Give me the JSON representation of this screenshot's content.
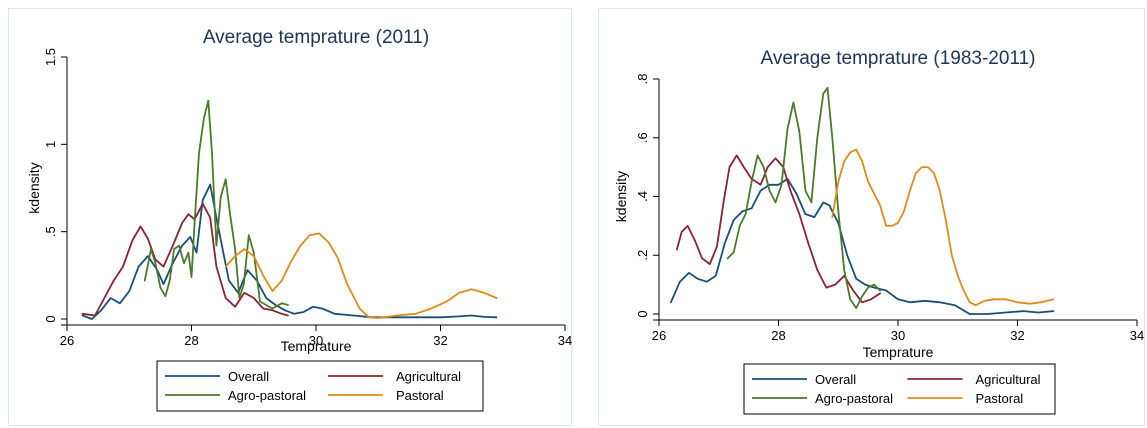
{
  "chart_data": [
    {
      "type": "line",
      "title": "Average temprature (2011)",
      "xlabel": "Temprature",
      "ylabel": "kdensity",
      "xlim": [
        26,
        34
      ],
      "ylim": [
        0,
        1.5
      ],
      "x_ticks": [
        26,
        28,
        30,
        32,
        34
      ],
      "x_tick_labels": [
        "26",
        "28",
        "30",
        "32",
        "34"
      ],
      "y_ticks": [
        0,
        0.5,
        1,
        1.5
      ],
      "y_tick_labels": [
        "0",
        ".5",
        "1",
        "1.5"
      ],
      "grid": false,
      "legend_position": "bottom",
      "series": [
        {
          "name": "Overall",
          "color": "#1a4e7a",
          "points": [
            [
              26.25,
              0.02
            ],
            [
              26.4,
              0.0
            ],
            [
              26.55,
              0.05
            ],
            [
              26.7,
              0.12
            ],
            [
              26.85,
              0.09
            ],
            [
              27.0,
              0.16
            ],
            [
              27.15,
              0.3
            ],
            [
              27.3,
              0.36
            ],
            [
              27.45,
              0.28
            ],
            [
              27.55,
              0.2
            ],
            [
              27.7,
              0.32
            ],
            [
              27.85,
              0.42
            ],
            [
              27.98,
              0.47
            ],
            [
              28.08,
              0.38
            ],
            [
              28.18,
              0.68
            ],
            [
              28.3,
              0.77
            ],
            [
              28.4,
              0.58
            ],
            [
              28.5,
              0.4
            ],
            [
              28.6,
              0.22
            ],
            [
              28.75,
              0.15
            ],
            [
              28.9,
              0.28
            ],
            [
              29.05,
              0.22
            ],
            [
              29.2,
              0.12
            ],
            [
              29.35,
              0.08
            ],
            [
              29.5,
              0.05
            ],
            [
              29.65,
              0.03
            ],
            [
              29.8,
              0.04
            ],
            [
              29.95,
              0.07
            ],
            [
              30.1,
              0.06
            ],
            [
              30.3,
              0.03
            ],
            [
              30.6,
              0.02
            ],
            [
              30.9,
              0.01
            ],
            [
              31.3,
              0.01
            ],
            [
              31.7,
              0.01
            ],
            [
              32.0,
              0.01
            ],
            [
              32.3,
              0.015
            ],
            [
              32.5,
              0.02
            ],
            [
              32.7,
              0.012
            ],
            [
              32.9,
              0.01
            ]
          ]
        },
        {
          "name": "Agricultural",
          "color": "#8b2233",
          "points": [
            [
              26.25,
              0.03
            ],
            [
              26.45,
              0.02
            ],
            [
              26.6,
              0.12
            ],
            [
              26.75,
              0.22
            ],
            [
              26.9,
              0.3
            ],
            [
              27.05,
              0.45
            ],
            [
              27.18,
              0.53
            ],
            [
              27.3,
              0.46
            ],
            [
              27.42,
              0.34
            ],
            [
              27.55,
              0.3
            ],
            [
              27.7,
              0.42
            ],
            [
              27.85,
              0.55
            ],
            [
              27.95,
              0.6
            ],
            [
              28.05,
              0.57
            ],
            [
              28.18,
              0.66
            ],
            [
              28.3,
              0.58
            ],
            [
              28.4,
              0.3
            ],
            [
              28.55,
              0.12
            ],
            [
              28.7,
              0.07
            ],
            [
              28.85,
              0.15
            ],
            [
              29.0,
              0.12
            ],
            [
              29.15,
              0.06
            ],
            [
              29.3,
              0.05
            ],
            [
              29.45,
              0.03
            ],
            [
              29.55,
              0.02
            ]
          ]
        },
        {
          "name": "Agro-pastoral",
          "color": "#4b7a2b",
          "points": [
            [
              27.25,
              0.22
            ],
            [
              27.35,
              0.4
            ],
            [
              27.42,
              0.32
            ],
            [
              27.5,
              0.18
            ],
            [
              27.58,
              0.13
            ],
            [
              27.65,
              0.22
            ],
            [
              27.72,
              0.4
            ],
            [
              27.8,
              0.42
            ],
            [
              27.88,
              0.32
            ],
            [
              27.95,
              0.38
            ],
            [
              28.0,
              0.24
            ],
            [
              28.05,
              0.55
            ],
            [
              28.12,
              0.95
            ],
            [
              28.2,
              1.15
            ],
            [
              28.27,
              1.25
            ],
            [
              28.33,
              0.95
            ],
            [
              28.4,
              0.42
            ],
            [
              28.47,
              0.7
            ],
            [
              28.55,
              0.8
            ],
            [
              28.62,
              0.6
            ],
            [
              28.7,
              0.4
            ],
            [
              28.77,
              0.12
            ],
            [
              28.84,
              0.2
            ],
            [
              28.92,
              0.48
            ],
            [
              29.0,
              0.38
            ],
            [
              29.1,
              0.1
            ],
            [
              29.2,
              0.08
            ],
            [
              29.3,
              0.06
            ],
            [
              29.45,
              0.09
            ],
            [
              29.55,
              0.08
            ]
          ]
        },
        {
          "name": "Pastoral",
          "color": "#e08a1a",
          "points": [
            [
              28.55,
              0.3
            ],
            [
              28.7,
              0.36
            ],
            [
              28.85,
              0.4
            ],
            [
              29.0,
              0.36
            ],
            [
              29.15,
              0.25
            ],
            [
              29.3,
              0.16
            ],
            [
              29.45,
              0.22
            ],
            [
              29.6,
              0.33
            ],
            [
              29.75,
              0.42
            ],
            [
              29.9,
              0.48
            ],
            [
              30.05,
              0.49
            ],
            [
              30.2,
              0.44
            ],
            [
              30.35,
              0.35
            ],
            [
              30.5,
              0.2
            ],
            [
              30.7,
              0.06
            ],
            [
              30.85,
              0.01
            ],
            [
              31.0,
              0.005
            ],
            [
              31.3,
              0.02
            ],
            [
              31.6,
              0.03
            ],
            [
              31.85,
              0.06
            ],
            [
              32.1,
              0.1
            ],
            [
              32.3,
              0.15
            ],
            [
              32.5,
              0.17
            ],
            [
              32.7,
              0.15
            ],
            [
              32.9,
              0.12
            ]
          ]
        }
      ]
    },
    {
      "type": "line",
      "title": "Average temprature (1983-2011)",
      "xlabel": "Temprature",
      "ylabel": "kdensity",
      "xlim": [
        26,
        34
      ],
      "ylim": [
        0,
        0.8
      ],
      "x_ticks": [
        26,
        28,
        30,
        32,
        34
      ],
      "x_tick_labels": [
        "26",
        "28",
        "30",
        "32",
        "34"
      ],
      "y_ticks": [
        0,
        0.2,
        0.4,
        0.6,
        0.8
      ],
      "y_tick_labels": [
        "0",
        ".2",
        ".4",
        ".6",
        ".8"
      ],
      "grid": false,
      "legend_position": "bottom",
      "series": [
        {
          "name": "Overall",
          "color": "#1a4e7a",
          "points": [
            [
              26.2,
              0.04
            ],
            [
              26.35,
              0.11
            ],
            [
              26.5,
              0.14
            ],
            [
              26.65,
              0.12
            ],
            [
              26.8,
              0.11
            ],
            [
              26.95,
              0.13
            ],
            [
              27.1,
              0.24
            ],
            [
              27.25,
              0.32
            ],
            [
              27.4,
              0.35
            ],
            [
              27.55,
              0.36
            ],
            [
              27.7,
              0.42
            ],
            [
              27.85,
              0.44
            ],
            [
              28.0,
              0.44
            ],
            [
              28.15,
              0.46
            ],
            [
              28.3,
              0.41
            ],
            [
              28.45,
              0.34
            ],
            [
              28.6,
              0.33
            ],
            [
              28.75,
              0.38
            ],
            [
              28.85,
              0.37
            ],
            [
              29.0,
              0.31
            ],
            [
              29.15,
              0.2
            ],
            [
              29.3,
              0.12
            ],
            [
              29.45,
              0.1
            ],
            [
              29.6,
              0.09
            ],
            [
              29.8,
              0.08
            ],
            [
              30.0,
              0.05
            ],
            [
              30.2,
              0.04
            ],
            [
              30.45,
              0.045
            ],
            [
              30.7,
              0.04
            ],
            [
              30.95,
              0.03
            ],
            [
              31.2,
              0.0
            ],
            [
              31.5,
              0.0
            ],
            [
              31.8,
              0.005
            ],
            [
              32.1,
              0.01
            ],
            [
              32.35,
              0.005
            ],
            [
              32.6,
              0.01
            ]
          ]
        },
        {
          "name": "Agricultural",
          "color": "#8b2233",
          "points": [
            [
              26.3,
              0.22
            ],
            [
              26.38,
              0.28
            ],
            [
              26.48,
              0.3
            ],
            [
              26.6,
              0.25
            ],
            [
              26.72,
              0.19
            ],
            [
              26.85,
              0.17
            ],
            [
              26.97,
              0.23
            ],
            [
              27.08,
              0.38
            ],
            [
              27.18,
              0.5
            ],
            [
              27.3,
              0.54
            ],
            [
              27.42,
              0.5
            ],
            [
              27.55,
              0.46
            ],
            [
              27.7,
              0.44
            ],
            [
              27.82,
              0.5
            ],
            [
              27.95,
              0.53
            ],
            [
              28.08,
              0.5
            ],
            [
              28.2,
              0.42
            ],
            [
              28.35,
              0.34
            ],
            [
              28.5,
              0.24
            ],
            [
              28.65,
              0.15
            ],
            [
              28.8,
              0.09
            ],
            [
              28.95,
              0.1
            ],
            [
              29.1,
              0.13
            ],
            [
              29.25,
              0.08
            ],
            [
              29.4,
              0.04
            ],
            [
              29.55,
              0.05
            ],
            [
              29.7,
              0.07
            ]
          ]
        },
        {
          "name": "Agro-pastoral",
          "color": "#4b7a2b",
          "points": [
            [
              27.15,
              0.19
            ],
            [
              27.25,
              0.21
            ],
            [
              27.35,
              0.3
            ],
            [
              27.45,
              0.34
            ],
            [
              27.55,
              0.45
            ],
            [
              27.65,
              0.54
            ],
            [
              27.75,
              0.5
            ],
            [
              27.85,
              0.42
            ],
            [
              27.95,
              0.38
            ],
            [
              28.05,
              0.44
            ],
            [
              28.15,
              0.63
            ],
            [
              28.25,
              0.72
            ],
            [
              28.35,
              0.62
            ],
            [
              28.45,
              0.42
            ],
            [
              28.55,
              0.38
            ],
            [
              28.65,
              0.6
            ],
            [
              28.75,
              0.75
            ],
            [
              28.82,
              0.77
            ],
            [
              28.9,
              0.6
            ],
            [
              29.0,
              0.35
            ],
            [
              29.1,
              0.15
            ],
            [
              29.2,
              0.05
            ],
            [
              29.3,
              0.02
            ],
            [
              29.4,
              0.06
            ],
            [
              29.5,
              0.09
            ],
            [
              29.6,
              0.1
            ],
            [
              29.7,
              0.08
            ]
          ]
        },
        {
          "name": "Pastoral",
          "color": "#e08a1a",
          "points": [
            [
              28.9,
              0.33
            ],
            [
              29.0,
              0.45
            ],
            [
              29.1,
              0.52
            ],
            [
              29.2,
              0.55
            ],
            [
              29.3,
              0.56
            ],
            [
              29.4,
              0.52
            ],
            [
              29.5,
              0.45
            ],
            [
              29.6,
              0.41
            ],
            [
              29.7,
              0.37
            ],
            [
              29.8,
              0.3
            ],
            [
              29.9,
              0.3
            ],
            [
              30.0,
              0.31
            ],
            [
              30.1,
              0.35
            ],
            [
              30.2,
              0.42
            ],
            [
              30.3,
              0.48
            ],
            [
              30.4,
              0.5
            ],
            [
              30.5,
              0.5
            ],
            [
              30.6,
              0.48
            ],
            [
              30.7,
              0.42
            ],
            [
              30.8,
              0.32
            ],
            [
              30.9,
              0.2
            ],
            [
              31.0,
              0.13
            ],
            [
              31.1,
              0.08
            ],
            [
              31.2,
              0.04
            ],
            [
              31.3,
              0.03
            ],
            [
              31.45,
              0.045
            ],
            [
              31.6,
              0.05
            ],
            [
              31.8,
              0.05
            ],
            [
              32.0,
              0.04
            ],
            [
              32.2,
              0.035
            ],
            [
              32.4,
              0.04
            ],
            [
              32.6,
              0.05
            ]
          ]
        }
      ]
    }
  ]
}
